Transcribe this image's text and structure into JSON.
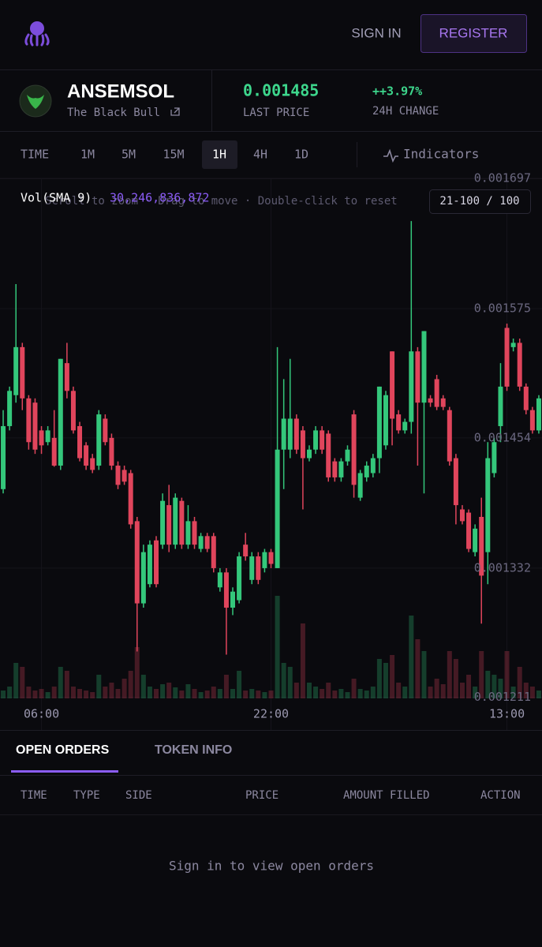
{
  "header": {
    "sign_in": "SIGN IN",
    "register": "REGISTER"
  },
  "token": {
    "symbol": "ANSEMSOL",
    "name": "The Black Bull",
    "last_price": "0.001485",
    "last_price_label": "LAST PRICE",
    "change": "++3.97%",
    "change_label": "24H CHANGE"
  },
  "timeframes": {
    "label": "TIME",
    "options": [
      "1M",
      "5M",
      "15M",
      "1H",
      "4H",
      "1D"
    ],
    "active": "1H",
    "indicators": "Indicators"
  },
  "chart_data": {
    "type": "candlestick",
    "hint": "Scroll to zoom · Drag to move · Double-click to reset",
    "range_label": "21-100 / 100",
    "volume_label": "Vol(SMA 9)",
    "volume_sma": {
      "value": 30246836872,
      "label": "30,246,836,872"
    },
    "up_color": "#34c77b",
    "down_color": "#e0455c",
    "grid": true,
    "ylim": [
      0.00121,
      0.0017
    ],
    "yticks": [
      0.001697,
      0.001575,
      0.001454,
      0.001332,
      0.001211
    ],
    "categories": [
      null,
      null,
      null,
      null,
      null,
      null,
      "06:00",
      null,
      null,
      null,
      null,
      null,
      null,
      null,
      null,
      null,
      null,
      null,
      null,
      null,
      null,
      null,
      null,
      null,
      null,
      null,
      null,
      null,
      null,
      null,
      null,
      null,
      null,
      null,
      null,
      null,
      null,
      null,
      null,
      null,
      null,
      null,
      "22:00",
      null,
      null,
      null,
      null,
      null,
      null,
      null,
      null,
      null,
      null,
      null,
      null,
      null,
      null,
      null,
      null,
      null,
      null,
      null,
      null,
      null,
      null,
      null,
      null,
      null,
      null,
      null,
      null,
      null,
      null,
      null,
      null,
      null,
      null,
      null,
      null,
      "13:00",
      null,
      null,
      null,
      null,
      null
    ],
    "open": [
      0.001406,
      0.001465,
      0.001494,
      0.001539,
      0.001491,
      0.001487,
      0.001461,
      0.00145,
      0.001454,
      0.001428,
      0.001524,
      0.001498,
      0.001465,
      0.001447,
      0.001435,
      0.001428,
      0.001472,
      0.001454,
      0.001428,
      0.001424,
      0.001421,
      0.001376,
      0.001299,
      0.001317,
      0.001358,
      0.001354,
      0.001391,
      0.001354,
      0.001395,
      0.001354,
      0.001376,
      0.00135,
      0.001362,
      0.001362,
      0.001314,
      0.001328,
      0.001295,
      0.001302,
      0.001354,
      0.001321,
      0.001343,
      0.001332,
      0.001347,
      0.001332,
      0.001443,
      0.001443,
      0.001472,
      0.001461,
      0.001435,
      0.001443,
      0.001461,
      0.001458,
      0.001432,
      0.001417,
      0.001432,
      0.001476,
      0.001398,
      0.001417,
      0.001421,
      0.001435,
      0.001447,
      0.001535,
      0.001476,
      0.001461,
      0.001469,
      0.001535,
      0.001487,
      0.001491,
      0.001509,
      0.001491,
      0.00148,
      0.001435,
      0.001387,
      0.001384,
      0.001347,
      0.00138,
      0.001347,
      0.001421,
      0.001465,
      0.001557,
      0.001539,
      0.001543,
      0.001502,
      0.00148,
      0.001461
    ],
    "high": [
      0.00148,
      0.001502,
      0.001598,
      0.001543,
      0.001494,
      0.001491,
      0.001465,
      0.001465,
      0.00148,
      0.001528,
      0.001543,
      0.001502,
      0.001469,
      0.00145,
      0.001439,
      0.00148,
      0.001476,
      0.001458,
      0.001432,
      0.001428,
      0.001424,
      0.00138,
      0.001354,
      0.001358,
      0.001362,
      0.001402,
      0.00141,
      0.001402,
      0.001398,
      0.001391,
      0.00138,
      0.001365,
      0.001365,
      0.001365,
      0.001332,
      0.001332,
      0.001314,
      0.001347,
      0.001365,
      0.001347,
      0.001347,
      0.00135,
      0.00135,
      0.001539,
      0.001509,
      0.001528,
      0.001476,
      0.001465,
      0.001447,
      0.001465,
      0.001465,
      0.001461,
      0.001435,
      0.001435,
      0.001447,
      0.00148,
      0.001424,
      0.001432,
      0.001439,
      0.001502,
      0.001498,
      0.001535,
      0.00148,
      0.001472,
      0.001657,
      0.001539,
      0.001554,
      0.001494,
      0.001513,
      0.001494,
      0.001483,
      0.001439,
      0.001391,
      0.001387,
      0.001373,
      0.001398,
      0.00145,
      0.001454,
      0.001524,
      0.001561,
      0.001547,
      0.001547,
      0.001505,
      0.001483,
      0.001494
    ],
    "low": [
      0.001402,
      0.001461,
      0.001487,
      0.00148,
      0.001443,
      0.001439,
      0.001439,
      0.001447,
      0.001427,
      0.001424,
      0.001491,
      0.001458,
      0.001432,
      0.001424,
      0.001421,
      0.001424,
      0.001447,
      0.001424,
      0.001406,
      0.00141,
      0.001369,
      0.001254,
      0.001295,
      0.001314,
      0.001314,
      0.00135,
      0.001347,
      0.00135,
      0.00135,
      0.00135,
      0.00135,
      0.001347,
      0.001347,
      0.001328,
      0.00131,
      0.001251,
      0.001288,
      0.001299,
      0.001339,
      0.001317,
      0.001317,
      0.001328,
      0.001332,
      0.001332,
      0.001406,
      0.001435,
      0.001439,
      0.001387,
      0.001432,
      0.001439,
      0.001439,
      0.001413,
      0.001413,
      0.001413,
      0.001428,
      0.001398,
      0.001395,
      0.001413,
      0.001417,
      0.001421,
      0.001443,
      0.001447,
      0.001458,
      0.001458,
      0.001458,
      0.001428,
      0.001402,
      0.001483,
      0.00148,
      0.00148,
      0.001428,
      0.001373,
      0.001373,
      0.001347,
      0.001343,
      0.00128,
      0.001317,
      0.001417,
      0.00145,
      0.001498,
      0.001535,
      0.001498,
      0.001476,
      0.001458,
      0.001458
    ],
    "close": [
      0.001465,
      0.001498,
      0.001539,
      0.001491,
      0.00145,
      0.001443,
      0.001447,
      0.001461,
      0.001428,
      0.001528,
      0.001498,
      0.001461,
      0.001435,
      0.001428,
      0.001424,
      0.001476,
      0.00145,
      0.001428,
      0.00141,
      0.001413,
      0.001373,
      0.001299,
      0.001347,
      0.001354,
      0.001317,
      0.001395,
      0.001354,
      0.001398,
      0.001354,
      0.001376,
      0.001354,
      0.001362,
      0.00135,
      0.001332,
      0.001328,
      0.001295,
      0.00131,
      0.001343,
      0.001343,
      0.001343,
      0.001321,
      0.001347,
      0.001336,
      0.001443,
      0.001472,
      0.001472,
      0.001443,
      0.001435,
      0.001443,
      0.001461,
      0.001443,
      0.001417,
      0.001417,
      0.001432,
      0.001443,
      0.00141,
      0.001421,
      0.001428,
      0.001435,
      0.001502,
      0.001494,
      0.001472,
      0.001461,
      0.001469,
      0.001535,
      0.001487,
      0.001554,
      0.001487,
      0.001483,
      0.001483,
      0.001432,
      0.001391,
      0.001376,
      0.00135,
      0.001369,
      0.001325,
      0.001435,
      0.00145,
      0.001502,
      0.001502,
      0.001543,
      0.001502,
      0.00148,
      0.001461,
      0.001491
    ],
    "volume": [
      10000000000.0,
      15000000000.0,
      45000000000.0,
      40000000000.0,
      15000000000.0,
      10000000000.0,
      12000000000.0,
      8000000000.0,
      15000000000.0,
      40000000000.0,
      35000000000.0,
      15000000000.0,
      12000000000.0,
      10000000000.0,
      8000000000.0,
      30000000000.0,
      15000000000.0,
      20000000000.0,
      12000000000.0,
      25000000000.0,
      35000000000.0,
      65000000000.0,
      30000000000.0,
      15000000000.0,
      12000000000.0,
      18000000000.0,
      20000000000.0,
      14000000000.0,
      10000000000.0,
      18000000000.0,
      12000000000.0,
      8000000000.0,
      10000000000.0,
      15000000000.0,
      12000000000.0,
      30000000000.0,
      12000000000.0,
      35000000000.0,
      10000000000.0,
      12000000000.0,
      10000000000.0,
      8000000000.0,
      10000000000.0,
      130000000000.0,
      45000000000.0,
      40000000000.0,
      20000000000.0,
      95000000000.0,
      20000000000.0,
      15000000000.0,
      12000000000.0,
      20000000000.0,
      10000000000.0,
      12000000000.0,
      8000000000.0,
      25000000000.0,
      12000000000.0,
      10000000000.0,
      15000000000.0,
      50000000000.0,
      45000000000.0,
      55000000000.0,
      20000000000.0,
      15000000000.0,
      105000000000.0,
      75000000000.0,
      60000000000.0,
      15000000000.0,
      25000000000.0,
      18000000000.0,
      60000000000.0,
      50000000000.0,
      20000000000.0,
      30000000000.0,
      15000000000.0,
      60000000000.0,
      35000000000.0,
      30000000000.0,
      25000000000.0,
      60000000000.0,
      15000000000.0,
      40000000000.0,
      20000000000.0,
      15000000000.0,
      10000000000.0
    ]
  },
  "orders": {
    "tabs": [
      "OPEN ORDERS",
      "TOKEN INFO"
    ],
    "active_tab": "OPEN ORDERS",
    "columns": [
      "TIME",
      "TYPE",
      "SIDE",
      "PRICE",
      "AMOUNT FILLED",
      "ACTION"
    ],
    "empty": "Sign in to view open orders"
  }
}
